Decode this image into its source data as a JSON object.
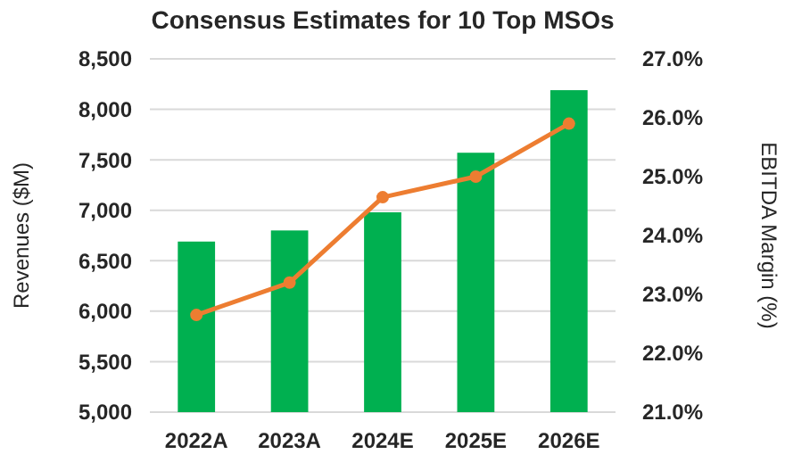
{
  "chart_data": {
    "type": "bar",
    "title": "Consensus Estimates for 10 Top MSOs",
    "ylabel": "Revenues ($M)",
    "y2label": "EBITDA Margin (%)",
    "categories": [
      "2022A",
      "2023A",
      "2024E",
      "2025E",
      "2026E"
    ],
    "series": [
      {
        "color": "#00b050",
        "values": [
          6690,
          6800,
          6980,
          7570,
          8190
        ]
      },
      {
        "type": "line",
        "axis": "y2",
        "color": "#ed7d31",
        "marker": "circle",
        "values": [
          22.65,
          23.2,
          24.65,
          25.0,
          25.9
        ]
      }
    ],
    "ylim": [
      5000,
      8500
    ],
    "yticks": [
      {
        "value": 5000,
        "label": "5,000"
      },
      {
        "value": 5500,
        "label": "5,500"
      },
      {
        "value": 6000,
        "label": "6,000"
      },
      {
        "value": 6500,
        "label": "6,500"
      },
      {
        "value": 7000,
        "label": "7,000"
      },
      {
        "value": 7500,
        "label": "7,500"
      },
      {
        "value": 8000,
        "label": "8,000"
      },
      {
        "value": 8500,
        "label": "8,500"
      }
    ],
    "y2lim": [
      21,
      27
    ],
    "y2ticks": [
      {
        "value": 21,
        "label": "21.0%"
      },
      {
        "value": 22,
        "label": "22.0%"
      },
      {
        "value": 23,
        "label": "23.0%"
      },
      {
        "value": 24,
        "label": "24.0%"
      },
      {
        "value": 25,
        "label": "25.0%"
      },
      {
        "value": 26,
        "label": "26.0%"
      },
      {
        "value": 27,
        "label": "27.0%"
      }
    ],
    "grid": "y"
  }
}
